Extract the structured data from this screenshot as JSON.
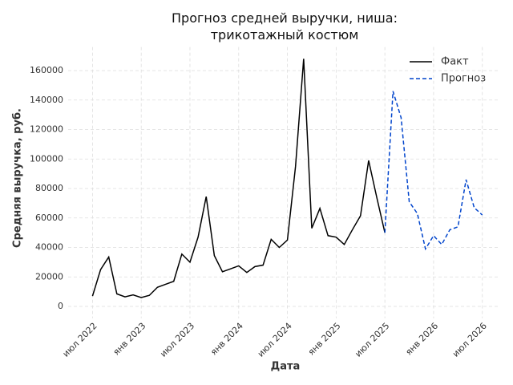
{
  "chart_data": {
    "type": "line",
    "title": "Прогноз средней выручки, ниша: трикотажный костюм",
    "x_label": "Дата",
    "y_label": "Средняя выручка, руб.",
    "x": [
      "2022-07",
      "2022-08",
      "2022-09",
      "2022-10",
      "2022-11",
      "2022-12",
      "2023-01",
      "2023-02",
      "2023-03",
      "2023-04",
      "2023-05",
      "2023-06",
      "2023-07",
      "2023-08",
      "2023-09",
      "2023-10",
      "2023-11",
      "2023-12",
      "2024-01",
      "2024-02",
      "2024-03",
      "2024-04",
      "2024-05",
      "2024-06",
      "2024-07",
      "2024-08",
      "2024-09",
      "2024-10",
      "2024-11",
      "2024-12",
      "2025-01",
      "2025-02",
      "2025-03",
      "2025-04",
      "2025-05",
      "2025-06",
      "2025-07",
      "2025-08",
      "2025-09",
      "2025-10",
      "2025-11",
      "2025-12",
      "2026-01",
      "2026-02",
      "2026-03",
      "2026-04",
      "2026-05",
      "2026-06",
      "2026-07"
    ],
    "series": [
      {
        "name": "Факт",
        "color": "#000000",
        "dash": false,
        "values": [
          7000,
          25000,
          33500,
          8500,
          6500,
          7800,
          6000,
          7500,
          13000,
          15000,
          17000,
          35500,
          30000,
          47000,
          74500,
          34500,
          23500,
          25500,
          27500,
          23000,
          27000,
          28000,
          45500,
          40000,
          45000,
          95000,
          168000,
          53000,
          66500,
          48000,
          47000,
          42000,
          52000,
          61500,
          99000,
          74000,
          50000,
          null,
          null,
          null,
          null,
          null,
          null,
          null,
          null,
          null,
          null,
          null,
          null
        ]
      },
      {
        "name": "Прогноз",
        "color": "#0044cc",
        "dash": true,
        "values": [
          null,
          null,
          null,
          null,
          null,
          null,
          null,
          null,
          null,
          null,
          null,
          null,
          null,
          null,
          null,
          null,
          null,
          null,
          null,
          null,
          null,
          null,
          null,
          null,
          null,
          null,
          null,
          null,
          null,
          null,
          null,
          null,
          null,
          null,
          null,
          null,
          50000,
          146000,
          128000,
          71000,
          63000,
          39000,
          48000,
          42000,
          52000,
          54000,
          86000,
          67000,
          62000
        ]
      }
    ],
    "xlim": [
      "2022-04",
      "2026-09"
    ],
    "xticks": [
      {
        "value": "2022-07",
        "label": "июл 2022"
      },
      {
        "value": "2023-01",
        "label": "янв 2023"
      },
      {
        "value": "2023-07",
        "label": "июл 2023"
      },
      {
        "value": "2024-01",
        "label": "янв 2024"
      },
      {
        "value": "2024-07",
        "label": "июл 2024"
      },
      {
        "value": "2025-01",
        "label": "янв 2025"
      },
      {
        "value": "2025-07",
        "label": "июл 2025"
      },
      {
        "value": "2026-01",
        "label": "янв 2026"
      },
      {
        "value": "2026-07",
        "label": "июл 2026"
      }
    ],
    "ylim": [
      -8000,
      176000
    ],
    "yticks": [
      0,
      20000,
      40000,
      60000,
      80000,
      100000,
      120000,
      140000,
      160000
    ],
    "grid": true,
    "legend": "upper right"
  }
}
